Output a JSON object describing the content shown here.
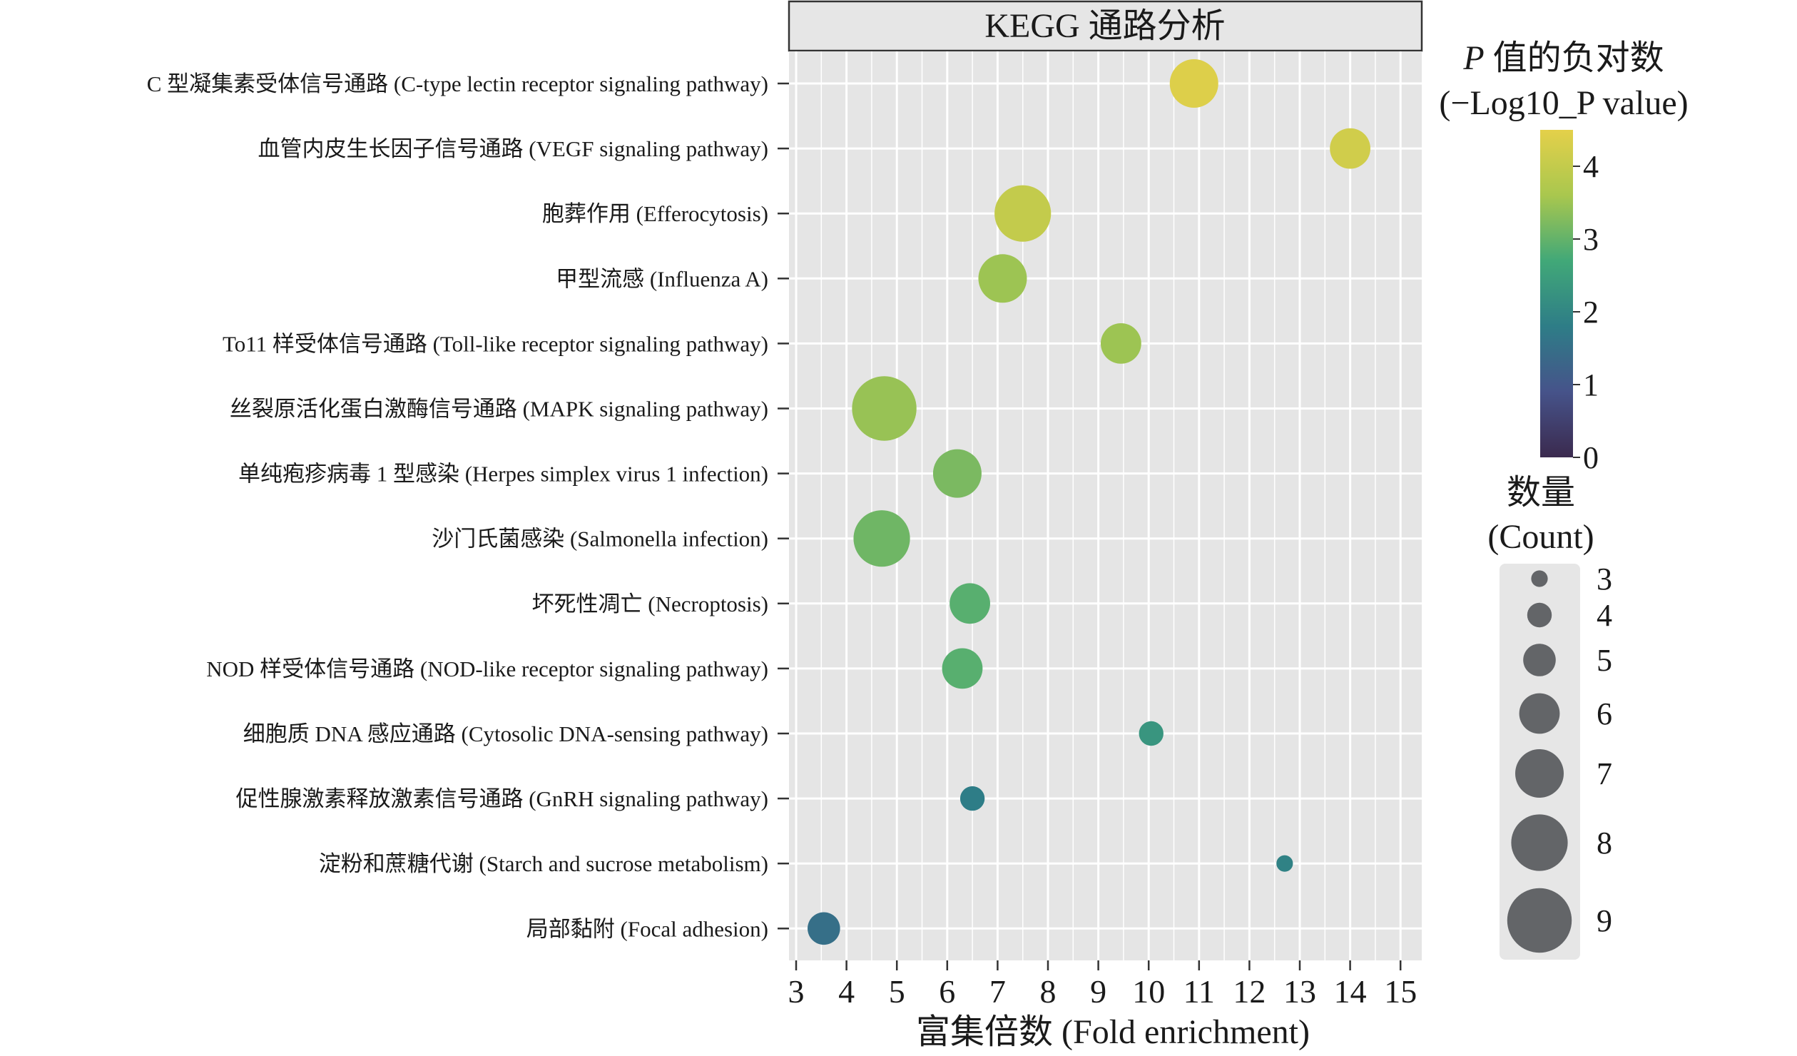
{
  "chart_data": {
    "type": "scatter",
    "title": "KEGG 通路分析",
    "xlabel": "富集倍数 (Fold enrichment)",
    "ylabel": "",
    "xlim": [
      2.75,
      15.35
    ],
    "xticks": [
      3,
      4,
      5,
      6,
      7,
      8,
      9,
      10,
      11,
      12,
      13,
      14,
      15
    ],
    "grid": true,
    "legend_placement": "right",
    "categories": [
      "C 型凝集素受体信号通路 (C-type lectin receptor signaling pathway)",
      "血管内皮生长因子信号通路 (VEGF signaling pathway)",
      "胞葬作用 (Efferocytosis)",
      "甲型流感 (Influenza A)",
      "To11 样受体信号通路 (Toll-like receptor signaling pathway)",
      "丝裂原活化蛋白激酶信号通路 (MAPK signaling pathway)",
      "单纯疱疹病毒 1 型感染 (Herpes simplex virus 1 infection)",
      "沙门氏菌感染 (Salmonella infection)",
      "坏死性凋亡 (Necroptosis)",
      "NOD 样受体信号通路 (NOD-like receptor signaling pathway)",
      "细胞质 DNA 感应通路 (Cytosolic DNA-sensing pathway)",
      "促性腺激素释放激素信号通路 (GnRH signaling pathway)",
      "淀粉和蔗糖代谢 (Starch and sucrose metabolism)",
      "局部黏附 (Focal adhesion)"
    ],
    "fold_enrichment": [
      10.9,
      14.0,
      7.5,
      7.1,
      9.45,
      4.75,
      6.2,
      4.7,
      6.45,
      6.3,
      10.05,
      6.5,
      12.7,
      3.55
    ],
    "count": [
      7,
      6,
      8,
      7,
      6,
      9,
      7,
      8,
      6,
      6,
      4,
      4,
      3,
      5
    ],
    "neg_log10_p": [
      4.4,
      4.2,
      4.0,
      3.5,
      3.5,
      3.45,
      3.2,
      3.1,
      2.9,
      2.9,
      2.3,
      1.8,
      1.9,
      1.5
    ],
    "color_legend": {
      "title_line1": "P 值的负对数",
      "title_line2": "(−Log10_P value)",
      "ticks": [
        0,
        1,
        2,
        3,
        4
      ],
      "range": [
        0,
        4.5
      ],
      "colorscale": [
        "#3b2a4e",
        "#46538a",
        "#2e7d87",
        "#41a878",
        "#a9c74e",
        "#e4d04a"
      ]
    },
    "size_legend": {
      "title_line1": "数量",
      "title_line2": "(Count)",
      "values": [
        3,
        4,
        5,
        6,
        7,
        8,
        9
      ]
    },
    "marker_color_legend": "#636568"
  }
}
